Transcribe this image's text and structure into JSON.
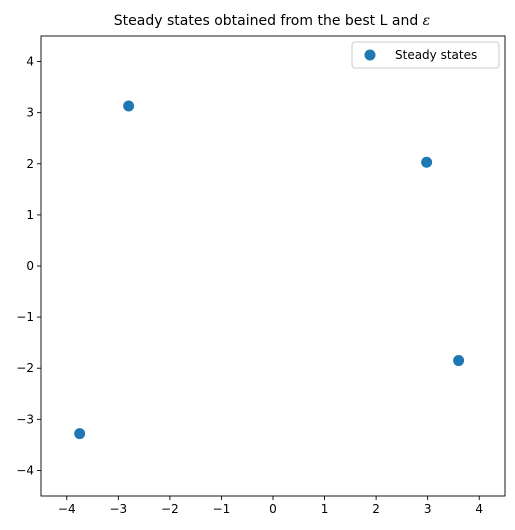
{
  "chart_data": {
    "type": "scatter",
    "title": "Steady states obtained from the best L and ",
    "title_symbol": "ε",
    "xlabel": "",
    "ylabel": "",
    "xlim": [
      -4.5,
      4.5
    ],
    "ylim": [
      -4.5,
      4.5
    ],
    "xticks": [
      "−4",
      "−3",
      "−2",
      "−1",
      "0",
      "1",
      "2",
      "3",
      "4"
    ],
    "yticks": [
      "−4",
      "−3",
      "−2",
      "−1",
      "0",
      "1",
      "2",
      "3",
      "4"
    ],
    "grid": false,
    "legend_position": "top-right",
    "series": [
      {
        "name": "Steady states",
        "color": "#1f77b4",
        "points": [
          {
            "x": -2.8,
            "y": 3.13
          },
          {
            "x": 2.98,
            "y": 2.03
          },
          {
            "x": 3.6,
            "y": -1.85
          },
          {
            "x": -3.75,
            "y": -3.28
          }
        ]
      }
    ]
  }
}
